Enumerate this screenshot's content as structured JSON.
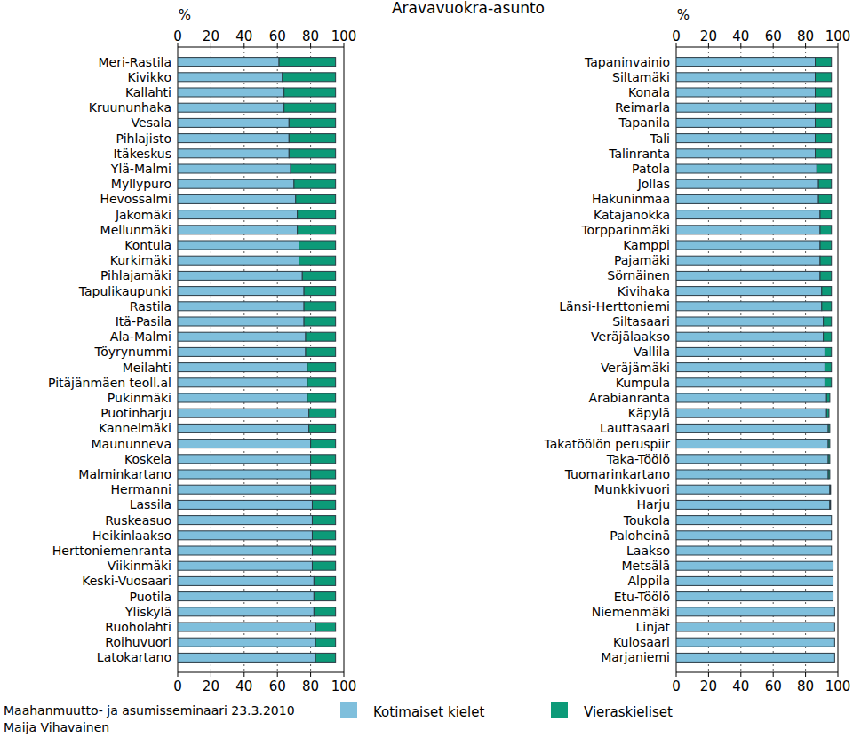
{
  "chart_data": [
    {
      "type": "bar",
      "orientation": "horizontal",
      "stacked": true,
      "grid": true,
      "title": "Aravavuokra-asunto",
      "xlabel": "%",
      "annotations": [
        "Maahanmuutto- ja asumisseminaari 23.3.2010",
        "Maija Vihavainen"
      ],
      "xlim": [
        0,
        100
      ],
      "xticks": [
        0,
        20,
        40,
        60,
        80,
        100
      ],
      "categories": [
        "Meri-Rastila",
        "Kivikko",
        "Kallahti",
        "Kruununhaka",
        "Vesala",
        "Pihlajisto",
        "Itäkeskus",
        "Ylä-Malmi",
        "Myllypuro",
        "Hevossalmi",
        "Jakomäki",
        "Mellunmäki",
        "Kontula",
        "Kurkimäki",
        "Pihlajamäki",
        "Tapulikaupunki",
        "Rastila",
        "Itä-Pasila",
        "Ala-Malmi",
        "Töyrynummi",
        "Meilahti",
        "Pitäjänmäen teoll.al",
        "Pukinmäki",
        "Puotinharju",
        "Kannelmäki",
        "Maununneva",
        "Koskela",
        "Malminkartano",
        "Hermanni",
        "Lassila",
        "Ruskeasuo",
        "Heikinlaakso",
        "Herttoniemenranta",
        "Viikinmäki",
        "Keski-Vuosaari",
        "Puotila",
        "Yliskylä",
        "Ruoholahti",
        "Roihuvuori",
        "Latokartano"
      ],
      "series": [
        {
          "name": "Kotimaiset kielet",
          "color": "#7fbfdc",
          "values": [
            61,
            63,
            64,
            64,
            67,
            67,
            67,
            68,
            70,
            71,
            72,
            72,
            73,
            73,
            75,
            76,
            76,
            76,
            77,
            77,
            78,
            78,
            78,
            79,
            79,
            80,
            80,
            80,
            80,
            81,
            81,
            81,
            81,
            81,
            82,
            82,
            82,
            83,
            83,
            83
          ]
        },
        {
          "color": "#0c9a78",
          "values": [
            34,
            32,
            31,
            31,
            28,
            28,
            28,
            27,
            25,
            24,
            23,
            23,
            22,
            22,
            20,
            19,
            19,
            19,
            18,
            18,
            17,
            17,
            17,
            16,
            16,
            15,
            15,
            15,
            15,
            14,
            14,
            14,
            14,
            14,
            13,
            13,
            13,
            12,
            12,
            12
          ]
        }
      ]
    },
    {
      "type": "bar",
      "orientation": "horizontal",
      "stacked": true,
      "grid": true,
      "xlabel": "%",
      "xlim": [
        0,
        100
      ],
      "xticks": [
        0,
        20,
        40,
        60,
        80,
        100
      ],
      "categories": [
        "Tapaninvainio",
        "Siltamäki",
        "Konala",
        "Reimarla",
        "Tapanila",
        "Tali",
        "Talinranta",
        "Patola",
        "Jollas",
        "Hakuninmaa",
        "Katajanokka",
        "Torpparinmäki",
        "Kamppi",
        "Pajamäki",
        "Sörnäinen",
        "Kivihaka",
        "Länsi-Herttoniemi",
        "Siltasaari",
        "Veräjälaakso",
        "Vallila",
        "Veräjämäki",
        "Kumpula",
        "Arabianranta",
        "Käpylä",
        "Lauttasaari",
        "Takatöölön peruspiir",
        "Taka-Töölö",
        "Tuomarinkartano",
        "Munkkivuori",
        "Harju",
        "Toukola",
        "Paloheinä",
        "Laakso",
        "Metsälä",
        "Alppila",
        "Etu-Töölö",
        "Niemenmäki",
        "Linjat",
        "Kulosaari",
        "Marjaniemi"
      ],
      "series": [
        {
          "color": "#7fbfdc",
          "values": [
            86,
            86,
            86,
            86,
            86,
            86,
            86,
            87,
            88,
            88,
            89,
            89,
            89,
            89,
            89,
            90,
            90,
            91,
            91,
            92,
            92,
            92,
            93,
            93,
            94,
            94,
            94,
            94,
            95,
            95,
            96,
            96,
            96,
            97,
            97,
            97,
            98,
            98,
            98,
            98
          ]
        },
        {
          "name": "Vieraskieliset",
          "color": "#0c9a78",
          "values": [
            10,
            10,
            10,
            10,
            10,
            10,
            10,
            9,
            8,
            8,
            7,
            7,
            7,
            7,
            7,
            6,
            6,
            5,
            5,
            4,
            4,
            4,
            2,
            1.5,
            1,
            1,
            1,
            1,
            0.5,
            0.5,
            0,
            0,
            0,
            0,
            0,
            0,
            0,
            0,
            0,
            0
          ]
        }
      ]
    }
  ]
}
